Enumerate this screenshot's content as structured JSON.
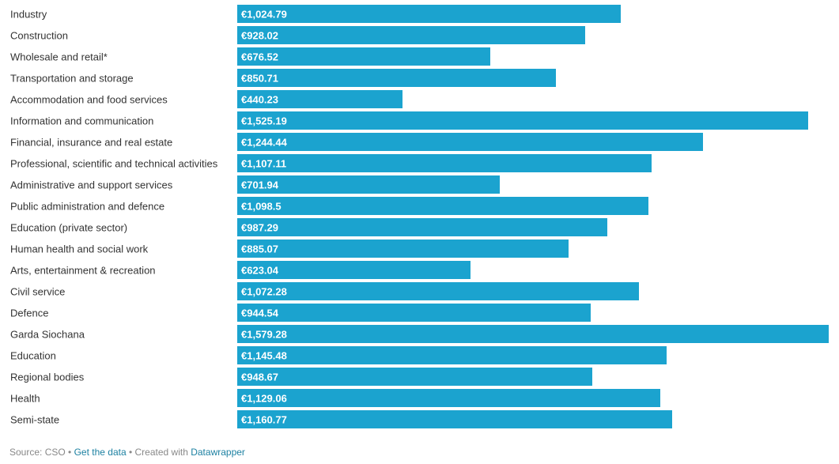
{
  "chart_data": {
    "type": "bar",
    "orientation": "horizontal",
    "categories": [
      "Industry",
      "Construction",
      "Wholesale and retail*",
      "Transportation and storage",
      "Accommodation and food services",
      "Information and communication",
      "Financial, insurance and real estate",
      "Professional, scientific and technical activities",
      "Administrative and support services",
      "Public administration and defence",
      "Education (private sector)",
      "Human health and social work",
      "Arts, entertainment & recreation",
      "Civil service",
      "Defence",
      "Garda Siochana",
      "Education",
      "Regional bodies",
      "Health",
      "Semi-state"
    ],
    "values": [
      1024.79,
      928.02,
      676.52,
      850.71,
      440.23,
      1525.19,
      1244.44,
      1107.11,
      701.94,
      1098.5,
      987.29,
      885.07,
      623.04,
      1072.28,
      944.54,
      1579.28,
      1145.48,
      948.67,
      1129.06,
      1160.77
    ],
    "value_labels": [
      "€1,024.79",
      "€928.02",
      "€676.52",
      "€850.71",
      "€440.23",
      "€1,525.19",
      "€1,244.44",
      "€1,107.11",
      "€701.94",
      "€1,098.5",
      "€987.29",
      "€885.07",
      "€623.04",
      "€1,072.28",
      "€944.54",
      "€1,579.28",
      "€1,145.48",
      "€948.67",
      "€1,129.06",
      "€1,160.77"
    ],
    "xlim": [
      0,
      1579.28
    ],
    "bar_color": "#1ba3cf",
    "grid": false,
    "legend": "none"
  },
  "footer": {
    "source": "Source: CSO",
    "separator": " • ",
    "get_data": "Get the data",
    "created_with": "Created with",
    "tool": "Datawrapper"
  },
  "colors": {
    "bar": "#1ba3cf",
    "label": "#333333",
    "value_text": "#ffffff",
    "footer_text": "#888888",
    "link": "#1d81a2"
  }
}
